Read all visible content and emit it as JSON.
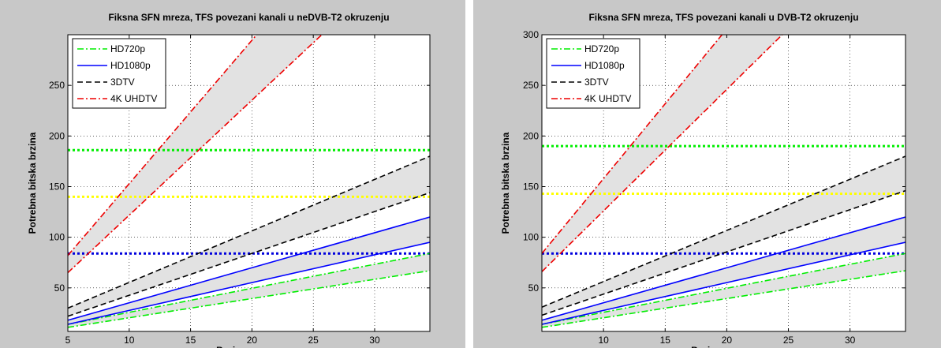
{
  "colors": {
    "hd720": "#00ee00",
    "hd1080": "#0000ff",
    "tv3d": "#000000",
    "uhd4k": "#ee0000",
    "band": "#e2e2e2",
    "ref_green": "#00ee00",
    "ref_yellow": "#ffff00",
    "ref_blue": "#0000dd"
  },
  "chart_data": [
    {
      "type": "line",
      "title": "Fiksna SFN mreza, TFS povezani kanali u neDVB-T2 okruzenju",
      "xlabel": "Broj programa",
      "ylabel": "Potrebna bitska brzina",
      "xlim": [
        5,
        34.5
      ],
      "ylim": [
        7,
        300
      ],
      "xticks": [
        5,
        10,
        15,
        20,
        25,
        30
      ],
      "yticks": [
        50,
        100,
        150,
        200,
        250
      ],
      "grid": true,
      "legend": "top-left",
      "series": [
        {
          "name": "HD720p",
          "color_key": "hd720",
          "style": "dashdot",
          "band": true,
          "lower": {
            "x": [
              5,
              34.5
            ],
            "y": [
              11,
              67
            ]
          },
          "upper": {
            "x": [
              5,
              34.5
            ],
            "y": [
              14,
              84
            ]
          }
        },
        {
          "name": "HD1080p",
          "color_key": "hd1080",
          "style": "solid",
          "band": true,
          "lower": {
            "x": [
              5,
              34.5
            ],
            "y": [
              14,
              95
            ]
          },
          "upper": {
            "x": [
              5,
              34.5
            ],
            "y": [
              18,
              120
            ]
          }
        },
        {
          "name": "3DTV",
          "color_key": "tv3d",
          "style": "dashed",
          "band": true,
          "lower": {
            "x": [
              5,
              34.5
            ],
            "y": [
              22,
              144
            ]
          },
          "upper": {
            "x": [
              5,
              34.5
            ],
            "y": [
              30,
              180
            ]
          }
        },
        {
          "name": "4K UHDTV",
          "color_key": "uhd4k",
          "style": "dashdot",
          "band": true,
          "lower": {
            "x": [
              5,
              34.5
            ],
            "y": [
              65,
              400
            ]
          },
          "upper": {
            "x": [
              5,
              34.5
            ],
            "y": [
              82,
              500
            ]
          }
        }
      ],
      "reference_lines": [
        {
          "y": 186,
          "color_key": "ref_green"
        },
        {
          "y": 140,
          "color_key": "ref_yellow"
        },
        {
          "y": 84,
          "color_key": "ref_blue"
        }
      ]
    },
    {
      "type": "line",
      "title": "Fiksna SFN mreza, TFS povezani kanali u DVB-T2 okruzenju",
      "xlabel": "Broj programa",
      "ylabel": "Potrebna bitska brzina",
      "xlim": [
        5,
        34.5
      ],
      "ylim": [
        7,
        300
      ],
      "xticks": [
        10,
        15,
        20,
        25,
        30
      ],
      "yticks": [
        50,
        100,
        150,
        200,
        250,
        300
      ],
      "grid": true,
      "legend": "top-left",
      "series": [
        {
          "name": "HD720p",
          "color_key": "hd720",
          "style": "dashdot",
          "band": true,
          "lower": {
            "x": [
              5,
              34.5
            ],
            "y": [
              11,
              67
            ]
          },
          "upper": {
            "x": [
              5,
              34.5
            ],
            "y": [
              14,
              84
            ]
          }
        },
        {
          "name": "HD1080p",
          "color_key": "hd1080",
          "style": "solid",
          "band": true,
          "lower": {
            "x": [
              5,
              34.5
            ],
            "y": [
              14,
              95
            ]
          },
          "upper": {
            "x": [
              5,
              34.5
            ],
            "y": [
              18,
              120
            ]
          }
        },
        {
          "name": "3DTV",
          "color_key": "tv3d",
          "style": "dashed",
          "band": true,
          "lower": {
            "x": [
              5,
              34.5
            ],
            "y": [
              23,
              146
            ]
          },
          "upper": {
            "x": [
              5,
              34.5
            ],
            "y": [
              31,
              180
            ]
          }
        },
        {
          "name": "4K UHDTV",
          "color_key": "uhd4k",
          "style": "dashdot",
          "band": true,
          "lower": {
            "x": [
              5,
              34.5
            ],
            "y": [
              66,
              420
            ]
          },
          "upper": {
            "x": [
              5,
              34.5
            ],
            "y": [
              84,
              520
            ]
          }
        }
      ],
      "reference_lines": [
        {
          "y": 190,
          "color_key": "ref_green"
        },
        {
          "y": 143,
          "color_key": "ref_yellow"
        },
        {
          "y": 84,
          "color_key": "ref_blue"
        }
      ]
    }
  ]
}
